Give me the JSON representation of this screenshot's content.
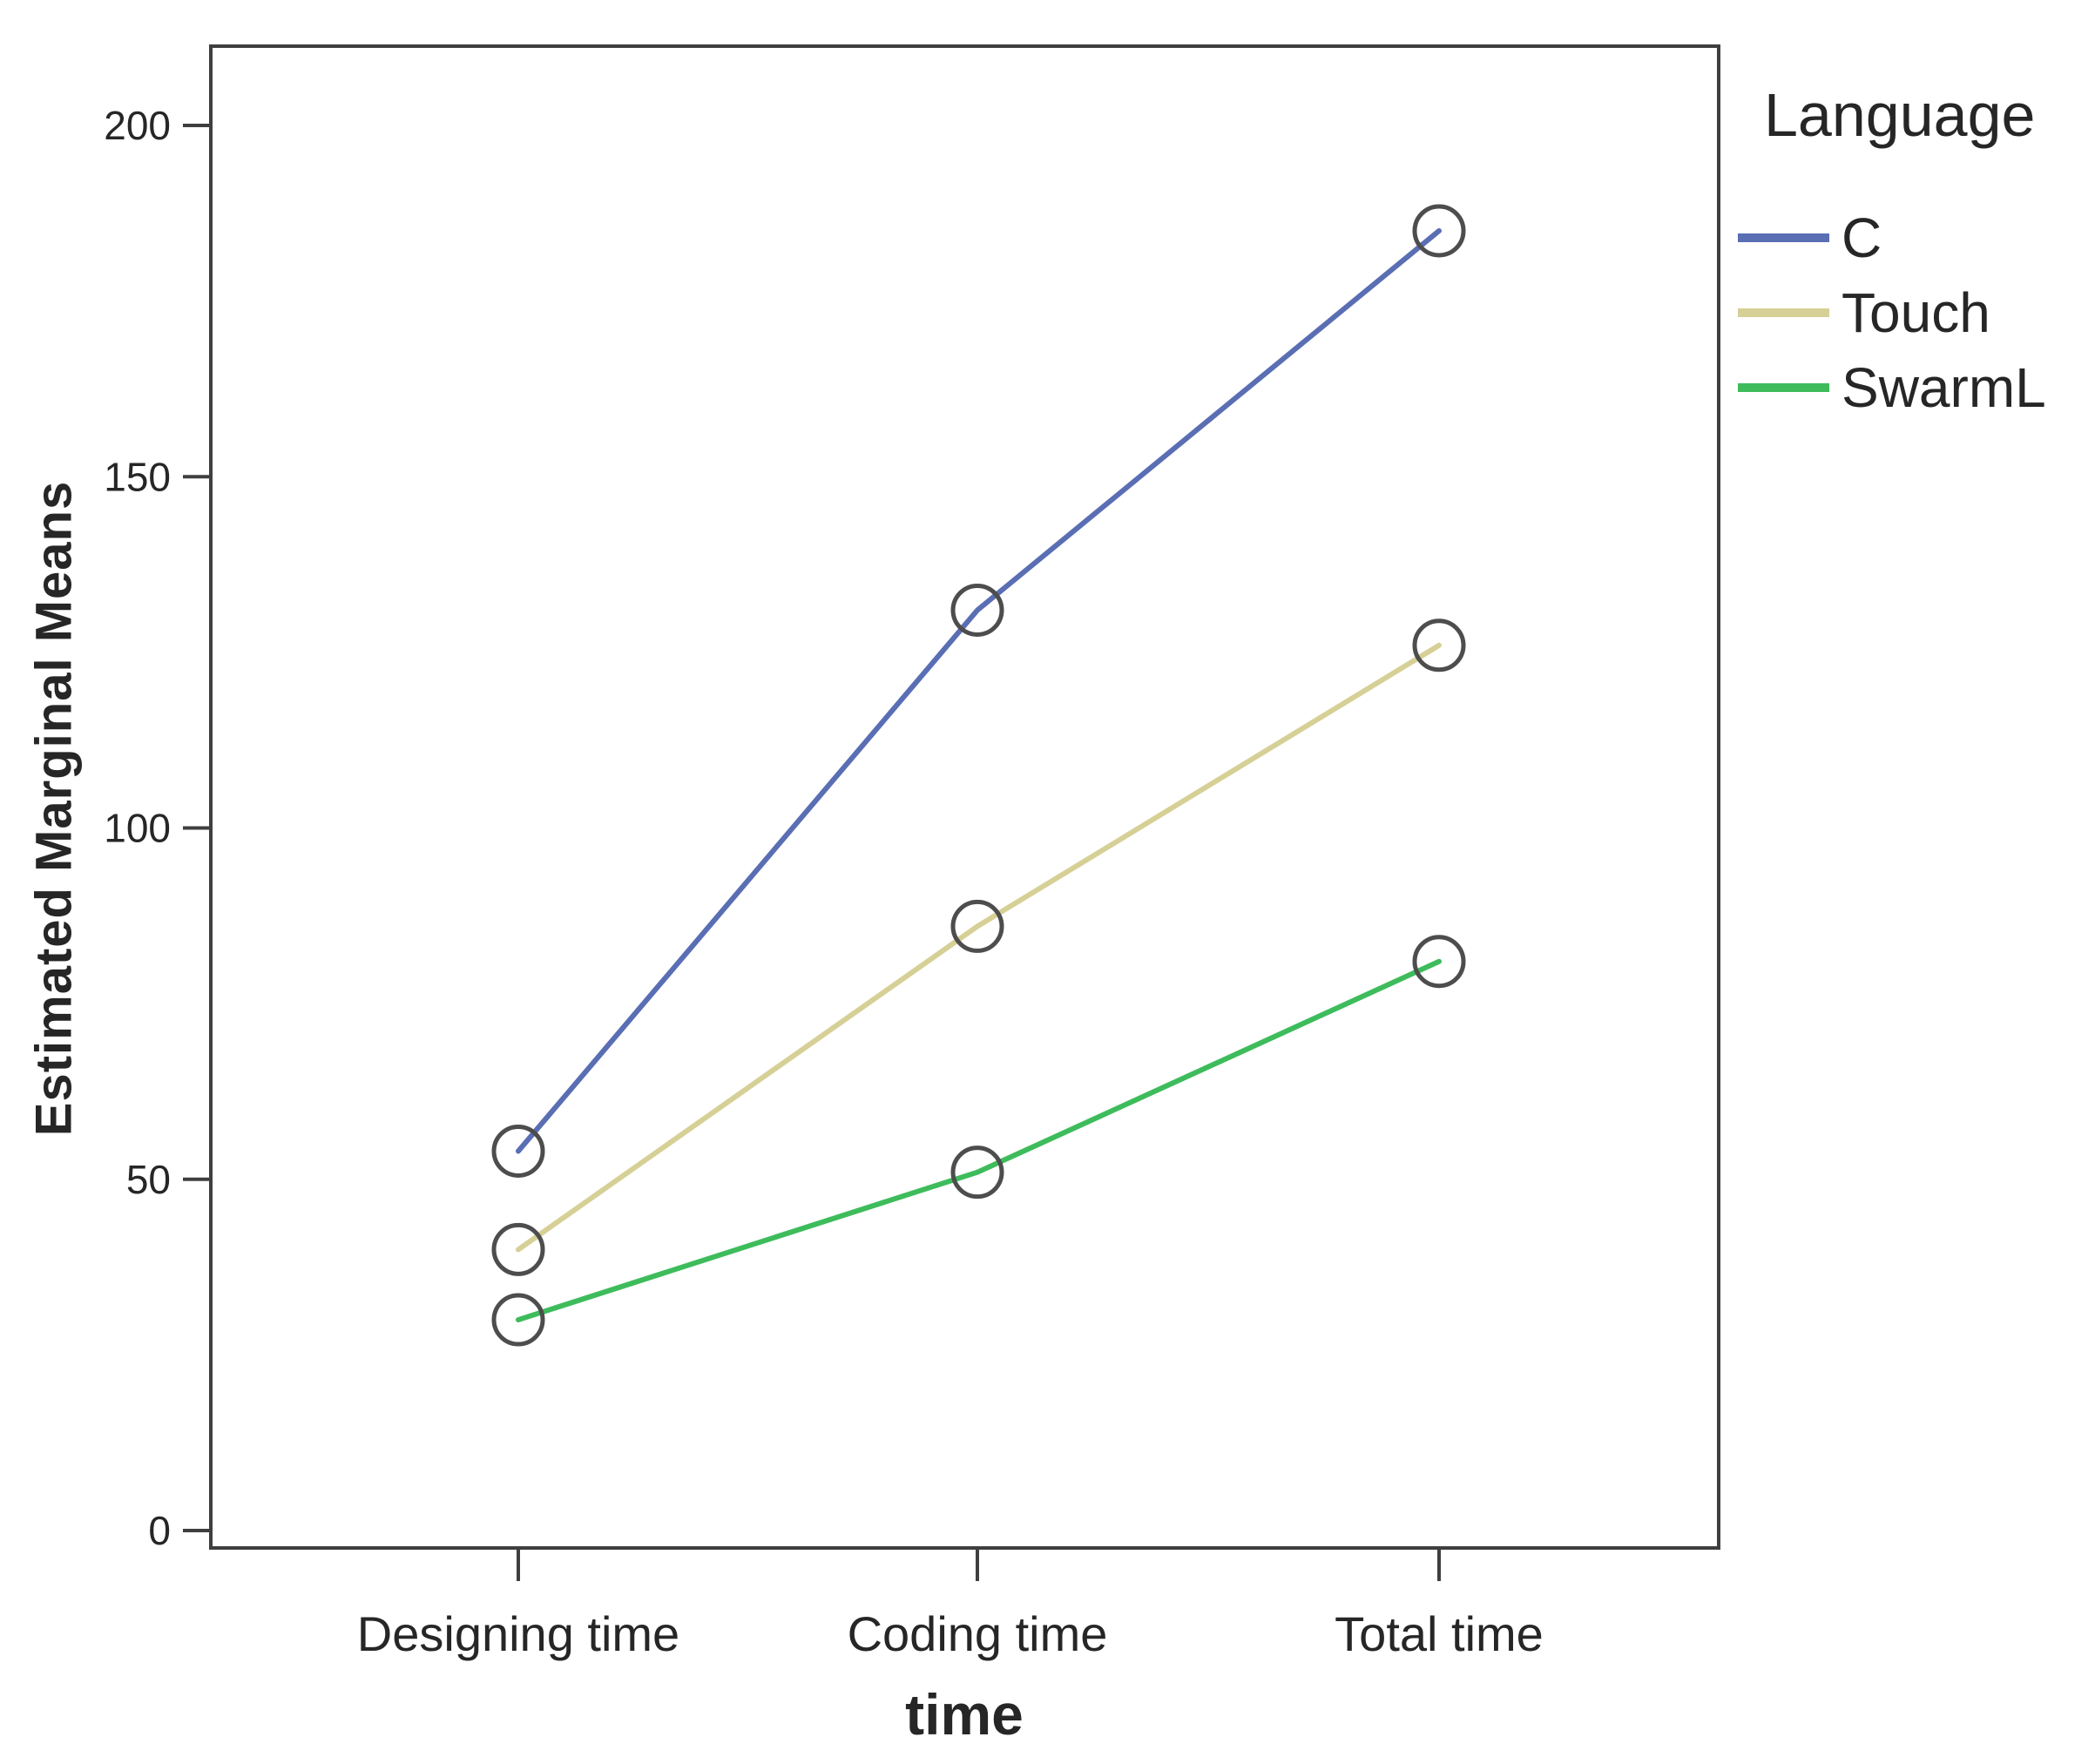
{
  "chart_data": {
    "type": "line",
    "title": "",
    "xlabel": "time",
    "ylabel": "Estimated Marginal Means",
    "categories": [
      "Designing time",
      "Coding time",
      "Total time"
    ],
    "series": [
      {
        "name": "C",
        "color": "#5A6EB4",
        "values": [
          54,
          131,
          185
        ]
      },
      {
        "name": "Touch",
        "color": "#D6D096",
        "values": [
          40,
          86,
          126
        ]
      },
      {
        "name": "SwarmL",
        "color": "#3EBC5C",
        "values": [
          30,
          51,
          81
        ]
      }
    ],
    "ylim": [
      0,
      200
    ],
    "yticks": [
      0,
      50,
      100,
      150,
      200
    ],
    "grid": false,
    "marker": "open-circle",
    "legend_title": "Language",
    "legend_position": "right"
  },
  "colors": {
    "background": "#FFFFFF",
    "frame": "#3F3F3F",
    "tick": "#3F3F3F",
    "text": "#262626",
    "marker_stroke": "#4D4D4D"
  }
}
